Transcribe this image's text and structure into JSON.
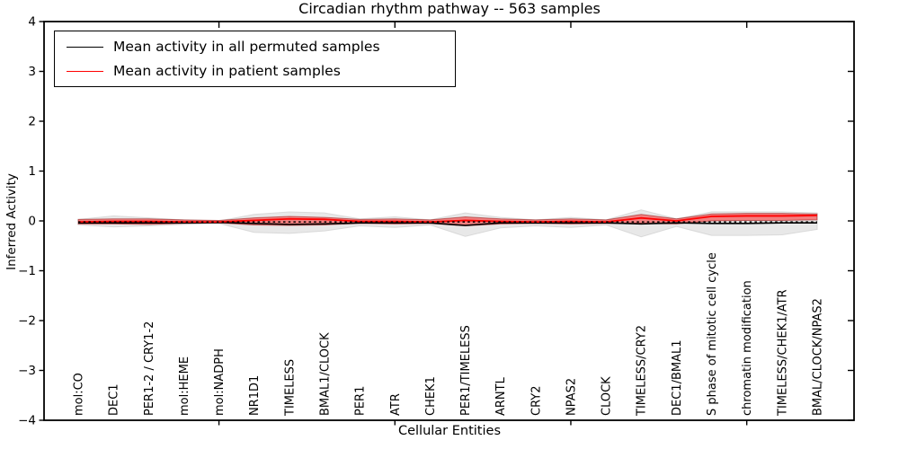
{
  "figure": {
    "title": "Circadian rhythm pathway -- 563 samples"
  },
  "legend": {
    "position": "upper left",
    "items": [
      {
        "label": "Mean activity in all permuted samples",
        "color": "#000000"
      },
      {
        "label": "Mean activity in patient samples",
        "color": "#ff0000"
      }
    ]
  },
  "chart_data": {
    "type": "line",
    "title": "Circadian rhythm pathway -- 563 samples",
    "xlabel": "Cellular Entities",
    "ylabel": "Inferred Activity",
    "ylim": [
      -4,
      4
    ],
    "yticks": [
      4,
      3,
      2,
      1,
      0,
      -1,
      -2,
      -3,
      -4
    ],
    "grid": false,
    "legend_position": "upper left",
    "categories": [
      "mol:CO",
      "DEC1",
      "PER1-2 / CRY1-2",
      "mol:HEME",
      "mol:NADPH",
      "NR1D1",
      "TIMELESS",
      "BMAL1/CLOCK",
      "PER1",
      "ATR",
      "CHEK1",
      "PER1/TIMELESS",
      "ARNTL",
      "CRY2",
      "NPAS2",
      "CLOCK",
      "TIMELESS/CRY2",
      "DEC1/BMAL1",
      "S phase of mitotic cell cycle",
      "chromatin modification",
      "TIMELESS/CHEK1/ATR",
      "BMAL/CLOCK/NPAS2"
    ],
    "x_major_tick_indices": [
      4,
      9,
      14,
      19
    ],
    "series": [
      {
        "name": "Mean activity in all permuted samples",
        "color": "#000000",
        "style": "solid",
        "values": [
          -0.04,
          -0.04,
          -0.04,
          -0.04,
          -0.03,
          -0.05,
          -0.07,
          -0.06,
          -0.04,
          -0.04,
          -0.04,
          -0.09,
          -0.04,
          -0.04,
          -0.04,
          -0.04,
          -0.06,
          -0.04,
          -0.05,
          -0.05,
          -0.04,
          -0.04
        ]
      },
      {
        "name": "Mean activity in patient samples",
        "color": "#ff0000",
        "style": "solid",
        "values": [
          -0.02,
          -0.01,
          -0.01,
          -0.02,
          -0.02,
          0.01,
          0.04,
          0.03,
          -0.01,
          -0.01,
          -0.02,
          0.01,
          -0.01,
          -0.02,
          -0.01,
          -0.02,
          0.06,
          0.0,
          0.09,
          0.1,
          0.1,
          0.11
        ]
      },
      {
        "name": "zero reference (dotted)",
        "color": "#000000",
        "style": "dashed",
        "values": [
          -0.02,
          -0.02,
          -0.02,
          -0.02,
          -0.02,
          -0.02,
          -0.02,
          -0.02,
          -0.02,
          -0.02,
          -0.02,
          -0.02,
          -0.02,
          -0.02,
          -0.02,
          -0.02,
          -0.02,
          -0.02,
          -0.02,
          -0.02,
          -0.02,
          -0.02
        ]
      }
    ],
    "bands": [
      {
        "name": "permuted samples range",
        "fill": "#e5e5e5",
        "edge": "#d6d6d6",
        "upper": [
          0.03,
          0.1,
          0.06,
          0.02,
          0.0,
          0.13,
          0.18,
          0.16,
          0.04,
          0.08,
          0.02,
          0.16,
          0.07,
          0.02,
          0.07,
          0.02,
          0.22,
          0.04,
          0.18,
          0.18,
          0.18,
          0.16
        ],
        "lower": [
          -0.08,
          -0.12,
          -0.1,
          -0.07,
          -0.05,
          -0.23,
          -0.25,
          -0.2,
          -0.1,
          -0.13,
          -0.08,
          -0.31,
          -0.14,
          -0.1,
          -0.13,
          -0.08,
          -0.32,
          -0.11,
          -0.29,
          -0.29,
          -0.28,
          -0.17
        ]
      },
      {
        "name": "patient samples range",
        "fill": "#ff0000",
        "edge": "#8c0000",
        "upper": [
          0.03,
          0.04,
          0.04,
          0.02,
          0.01,
          0.06,
          0.09,
          0.07,
          0.03,
          0.04,
          0.02,
          0.08,
          0.04,
          0.02,
          0.04,
          0.02,
          0.13,
          0.04,
          0.14,
          0.15,
          0.15,
          0.14
        ],
        "lower": [
          -0.06,
          -0.06,
          -0.07,
          -0.05,
          -0.04,
          -0.08,
          -0.09,
          -0.08,
          -0.05,
          -0.06,
          -0.05,
          -0.1,
          -0.06,
          -0.05,
          -0.06,
          -0.05,
          -0.05,
          -0.06,
          0.0,
          0.01,
          0.01,
          0.02
        ]
      }
    ]
  }
}
